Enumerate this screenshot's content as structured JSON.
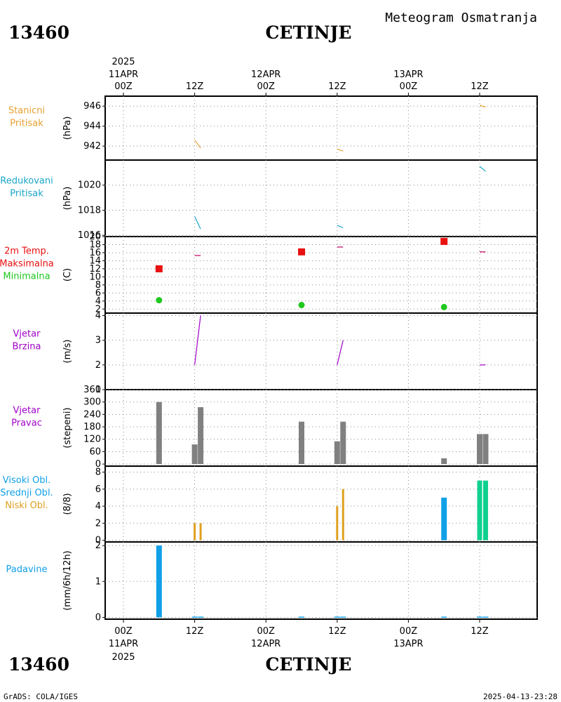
{
  "header": {
    "station_id": "13460",
    "station_name": "CETINJE",
    "title": "Meteogram Osmatranja"
  },
  "footer": {
    "station_id": "13460",
    "station_name": "CETINJE",
    "credit": "GrADS: COLA/IGES",
    "timestamp": "2025-04-13-23:28"
  },
  "time_axis": {
    "year": "2025",
    "ticks": [
      {
        "t": 0,
        "label": "00Z",
        "date": "11APR"
      },
      {
        "t": 12,
        "label": "12Z",
        "date": ""
      },
      {
        "t": 24,
        "label": "00Z",
        "date": "12APR"
      },
      {
        "t": 36,
        "label": "12Z",
        "date": ""
      },
      {
        "t": 48,
        "label": "00Z",
        "date": "13APR"
      },
      {
        "t": 60,
        "label": "12Z",
        "date": ""
      }
    ]
  },
  "colors": {
    "pressure_station": "#e8a030",
    "pressure_reduced": "#1aa6c8",
    "tmax": "#e81010",
    "tmin": "#20c820",
    "wind": "#a000c8",
    "wind_dir_bar": "#808080",
    "cloud_high": "#10a0e8",
    "cloud_mid": "#10d090",
    "cloud_low": "#e0a020",
    "precip": "#10a0e8"
  },
  "chart_data": [
    {
      "type": "line",
      "panel": "pressure_station",
      "labels": [
        "Stanicni",
        "Pritisak"
      ],
      "ylabel": "(hPa)",
      "ylim": [
        940.6,
        947
      ],
      "yticks": [
        942,
        944,
        946
      ],
      "series": [
        {
          "segments": [
            [
              [
                12,
                942.6
              ],
              [
                13,
                941.8
              ]
            ],
            [
              [
                36,
                941.7
              ],
              [
                37,
                941.5
              ]
            ],
            [
              [
                60,
                946.1
              ],
              [
                61,
                945.9
              ]
            ]
          ]
        }
      ]
    },
    {
      "type": "line",
      "panel": "pressure_reduced",
      "labels": [
        "Redukovani",
        "Pritisak"
      ],
      "ylabel": "(hPa)",
      "ylim": [
        1015.9,
        1022
      ],
      "yticks": [
        1016,
        1018,
        1020
      ],
      "series": [
        {
          "segments": [
            [
              [
                12,
                1017.5
              ],
              [
                13,
                1016.5
              ]
            ],
            [
              [
                36,
                1016.8
              ],
              [
                37,
                1016.6
              ]
            ],
            [
              [
                60,
                1021.5
              ],
              [
                61,
                1021.1
              ]
            ]
          ]
        }
      ]
    },
    {
      "type": "scatter",
      "panel": "temperature",
      "labels": [
        "2m Temp.",
        "Maksimalna",
        "Minimalna"
      ],
      "ylabel": "(C)",
      "ylim": [
        1,
        20
      ],
      "yticks": [
        2,
        4,
        6,
        8,
        10,
        12,
        14,
        16,
        18,
        20
      ],
      "tmax": [
        {
          "t": 6,
          "v": 12
        },
        {
          "t": 30,
          "v": 16.2
        },
        {
          "t": 54,
          "v": 18.8
        }
      ],
      "tmin": [
        {
          "t": 6,
          "v": 4.2
        },
        {
          "t": 30,
          "v": 3
        },
        {
          "t": 54,
          "v": 2.5
        }
      ],
      "tline_segments": [
        [
          [
            12,
            15.3
          ],
          [
            13,
            15.3
          ]
        ],
        [
          [
            36,
            17.4
          ],
          [
            37,
            17.4
          ]
        ],
        [
          [
            60,
            16.2
          ],
          [
            61,
            16.2
          ]
        ]
      ]
    },
    {
      "type": "line",
      "panel": "wind_speed",
      "labels": [
        "Vjetar",
        "Brzina"
      ],
      "ylabel": "(m/s)",
      "ylim": [
        1,
        4.1
      ],
      "yticks": [
        1,
        2,
        3,
        4
      ],
      "series": [
        {
          "segments": [
            [
              [
                12,
                2
              ],
              [
                13,
                4
              ]
            ],
            [
              [
                36,
                2
              ],
              [
                37,
                3
              ]
            ],
            [
              [
                60,
                2
              ],
              [
                61,
                2
              ]
            ]
          ]
        }
      ]
    },
    {
      "type": "bar",
      "panel": "wind_direction",
      "labels": [
        "Vjetar",
        "Pravac"
      ],
      "ylabel": "(stepeni)",
      "ylim": [
        -10,
        360
      ],
      "yticks": [
        0,
        60,
        120,
        180,
        240,
        300,
        360
      ],
      "bars": [
        {
          "t": 6,
          "v": 300
        },
        {
          "t": 12,
          "v": 95
        },
        {
          "t": 13,
          "v": 275
        },
        {
          "t": 30,
          "v": 205
        },
        {
          "t": 36,
          "v": 110
        },
        {
          "t": 37,
          "v": 205
        },
        {
          "t": 54,
          "v": 28
        },
        {
          "t": 60,
          "v": 145
        },
        {
          "t": 61,
          "v": 145
        }
      ]
    },
    {
      "type": "bar",
      "panel": "clouds",
      "labels": [
        "Visoki Obl.",
        "Srednji Obl.",
        "Niski Obl."
      ],
      "ylabel": "(8/8)",
      "ylim": [
        -0.2,
        8.7
      ],
      "yticks": [
        0,
        2,
        4,
        6,
        8
      ],
      "high": [
        {
          "t": 54,
          "v": 5
        }
      ],
      "mid": [
        {
          "t": 60,
          "v": 7
        },
        {
          "t": 61,
          "v": 7
        }
      ],
      "low": [
        {
          "t": 12,
          "v": 2
        },
        {
          "t": 13,
          "v": 2
        },
        {
          "t": 36,
          "v": 4
        },
        {
          "t": 37,
          "v": 6
        }
      ]
    },
    {
      "type": "bar",
      "panel": "precipitation",
      "labels": [
        "Padavine"
      ],
      "ylabel": "(mm/6h/12h)",
      "ylim": [
        -0.05,
        2.1
      ],
      "yticks": [
        0,
        1,
        2
      ],
      "bars": [
        {
          "t": 6,
          "v": 2.0
        },
        {
          "t": 12,
          "v": 0.02
        },
        {
          "t": 13,
          "v": 0.02
        },
        {
          "t": 30,
          "v": 0.02
        },
        {
          "t": 36,
          "v": 0.02
        },
        {
          "t": 37,
          "v": 0.02
        },
        {
          "t": 54,
          "v": 0.02
        },
        {
          "t": 60,
          "v": 0.02
        },
        {
          "t": 61,
          "v": 0.02
        }
      ]
    }
  ]
}
